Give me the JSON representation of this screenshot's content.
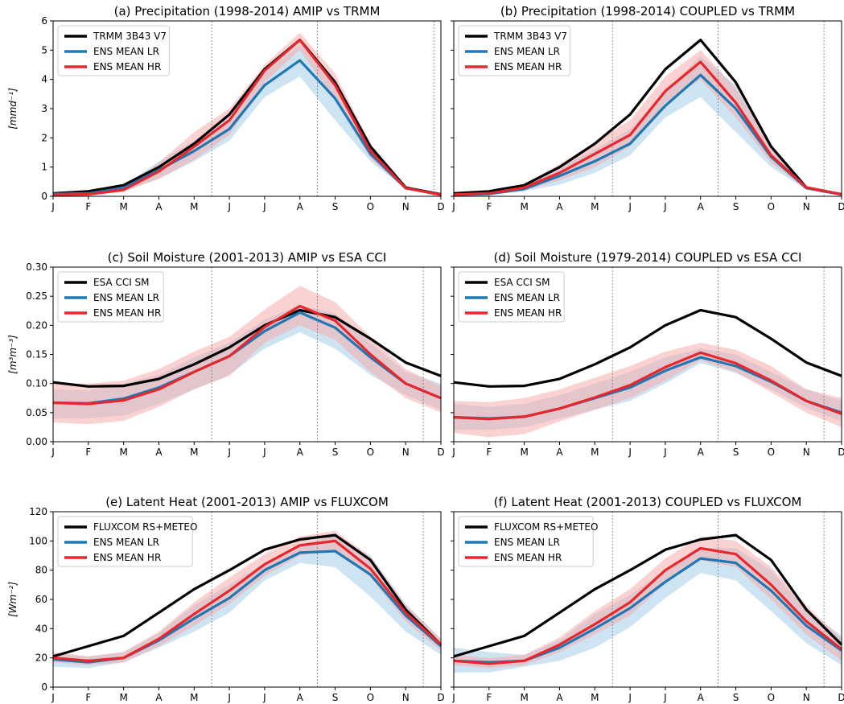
{
  "months": [
    "J",
    "F",
    "M",
    "A",
    "M",
    "J",
    "J",
    "A",
    "S",
    "O",
    "N",
    "D"
  ],
  "colors": {
    "obs": "#000000",
    "lr": "#1f77b4",
    "hr": "#e8262c",
    "lr_band": "#a6cde8",
    "hr_band": "#f7a6a6"
  },
  "chart_data": [
    {
      "type": "line",
      "title": "(a) Precipitation (1998-2014) AMIP vs TRMM",
      "ylabel": "[mmd⁻¹]",
      "ylim": [
        0,
        6
      ],
      "yticks": [
        "0",
        "1",
        "2",
        "3",
        "4",
        "5",
        "6"
      ],
      "x": [
        "J",
        "F",
        "M",
        "A",
        "M",
        "J",
        "J",
        "A",
        "S",
        "O",
        "N",
        "D"
      ],
      "vlines_at_months": [
        4.5,
        7.5,
        10.8
      ],
      "series": [
        {
          "name": "TRMM 3B43 V7",
          "role": "obs",
          "values": [
            0.1,
            0.17,
            0.38,
            1.0,
            1.8,
            2.8,
            4.35,
            5.35,
            3.9,
            1.7,
            0.3,
            0.07
          ]
        },
        {
          "name": "ENS MEAN LR",
          "role": "lr",
          "values": [
            0.08,
            0.1,
            0.28,
            0.9,
            1.55,
            2.3,
            3.8,
            4.65,
            3.35,
            1.45,
            0.28,
            0.06
          ],
          "band_low": [
            0.04,
            0.06,
            0.2,
            0.6,
            1.2,
            1.9,
            3.4,
            4.1,
            2.6,
            1.2,
            0.24,
            0.04
          ],
          "band_high": [
            0.12,
            0.14,
            0.36,
            1.2,
            1.9,
            2.7,
            4.2,
            5.2,
            4.0,
            1.7,
            0.34,
            0.08
          ]
        },
        {
          "name": "ENS MEAN HR",
          "role": "hr",
          "values": [
            0.05,
            0.07,
            0.22,
            0.85,
            1.7,
            2.6,
            4.3,
            5.35,
            3.8,
            1.55,
            0.28,
            0.05
          ],
          "band_low": [
            0.03,
            0.04,
            0.15,
            0.6,
            1.25,
            2.1,
            3.9,
            5.0,
            3.3,
            1.3,
            0.24,
            0.03
          ],
          "band_high": [
            0.08,
            0.1,
            0.3,
            1.15,
            2.2,
            3.0,
            4.5,
            5.6,
            4.2,
            1.8,
            0.33,
            0.08
          ]
        }
      ]
    },
    {
      "type": "line",
      "title": "(b) Precipitation (1998-2014) COUPLED vs TRMM",
      "ylabel": "",
      "ylim": [
        0,
        6
      ],
      "yticks": [],
      "x": [
        "J",
        "F",
        "M",
        "A",
        "M",
        "J",
        "J",
        "A",
        "S",
        "O",
        "N",
        "D"
      ],
      "vlines_at_months": [
        4.5,
        7.5,
        10.5
      ],
      "series": [
        {
          "name": "TRMM 3B43 V7",
          "role": "obs",
          "values": [
            0.1,
            0.17,
            0.38,
            1.0,
            1.8,
            2.8,
            4.35,
            5.35,
            3.9,
            1.7,
            0.3,
            0.07
          ]
        },
        {
          "name": "ENS MEAN LR",
          "role": "lr",
          "values": [
            0.05,
            0.08,
            0.25,
            0.7,
            1.2,
            1.8,
            3.1,
            4.15,
            3.0,
            1.35,
            0.28,
            0.06
          ],
          "band_low": [
            0.03,
            0.05,
            0.18,
            0.4,
            0.8,
            1.4,
            2.7,
            3.4,
            2.2,
            1.0,
            0.23,
            0.04
          ],
          "band_high": [
            0.08,
            0.12,
            0.35,
            1.0,
            1.6,
            2.3,
            3.6,
            4.8,
            3.8,
            1.6,
            0.33,
            0.08
          ]
        },
        {
          "name": "ENS MEAN HR",
          "role": "hr",
          "values": [
            0.06,
            0.1,
            0.3,
            0.8,
            1.45,
            2.1,
            3.6,
            4.6,
            3.2,
            1.4,
            0.3,
            0.07
          ],
          "band_low": [
            0.04,
            0.07,
            0.2,
            0.55,
            1.0,
            1.7,
            3.2,
            4.0,
            2.7,
            1.15,
            0.25,
            0.05
          ],
          "band_high": [
            0.09,
            0.14,
            0.4,
            1.1,
            1.85,
            2.6,
            4.1,
            5.0,
            3.7,
            1.7,
            0.36,
            0.09
          ]
        }
      ]
    },
    {
      "type": "line",
      "title": "(c) Soil Moisture (2001-2013) AMIP vs ESA CCI",
      "ylabel": "[m³m⁻³]",
      "ylim": [
        0,
        0.3
      ],
      "yticks": [
        "0.00",
        "0.05",
        "0.10",
        "0.15",
        "0.20",
        "0.25",
        "0.30"
      ],
      "x": [
        "J",
        "F",
        "M",
        "A",
        "M",
        "J",
        "J",
        "A",
        "S",
        "O",
        "N",
        "D"
      ],
      "vlines_at_months": [
        4.5,
        7.5,
        10.5
      ],
      "series": [
        {
          "name": "ESA CCI SM",
          "role": "obs",
          "values": [
            0.102,
            0.095,
            0.096,
            0.108,
            0.133,
            0.162,
            0.2,
            0.226,
            0.214,
            0.177,
            0.136,
            0.113
          ]
        },
        {
          "name": "ENS MEAN LR",
          "role": "lr",
          "values": [
            0.067,
            0.066,
            0.074,
            0.093,
            0.12,
            0.147,
            0.19,
            0.222,
            0.196,
            0.145,
            0.1,
            0.075
          ],
          "band_low": [
            0.04,
            0.04,
            0.045,
            0.065,
            0.09,
            0.115,
            0.16,
            0.188,
            0.16,
            0.115,
            0.08,
            0.055
          ],
          "band_high": [
            0.09,
            0.088,
            0.1,
            0.115,
            0.145,
            0.17,
            0.21,
            0.235,
            0.22,
            0.17,
            0.12,
            0.1
          ]
        },
        {
          "name": "ENS MEAN HR",
          "role": "hr",
          "values": [
            0.067,
            0.065,
            0.071,
            0.09,
            0.12,
            0.147,
            0.197,
            0.233,
            0.208,
            0.15,
            0.1,
            0.075
          ],
          "band_low": [
            0.033,
            0.03,
            0.036,
            0.06,
            0.09,
            0.113,
            0.17,
            0.2,
            0.175,
            0.12,
            0.075,
            0.05
          ],
          "band_high": [
            0.1,
            0.1,
            0.105,
            0.125,
            0.155,
            0.18,
            0.227,
            0.268,
            0.24,
            0.18,
            0.125,
            0.095
          ]
        }
      ]
    },
    {
      "type": "line",
      "title": "(d) Soil Moisture (1979-2014) COUPLED vs ESA CCI",
      "ylabel": "",
      "ylim": [
        0,
        0.3
      ],
      "yticks": [],
      "x": [
        "J",
        "F",
        "M",
        "A",
        "M",
        "J",
        "J",
        "A",
        "S",
        "O",
        "N",
        "D"
      ],
      "vlines_at_months": [
        4.5,
        7.5,
        10.5
      ],
      "series": [
        {
          "name": "ESA CCI SM",
          "role": "obs",
          "values": [
            0.102,
            0.095,
            0.096,
            0.108,
            0.133,
            0.162,
            0.2,
            0.226,
            0.214,
            0.177,
            0.136,
            0.113
          ]
        },
        {
          "name": "ENS MEAN LR",
          "role": "lr",
          "values": [
            0.042,
            0.04,
            0.043,
            0.057,
            0.075,
            0.093,
            0.122,
            0.145,
            0.13,
            0.103,
            0.07,
            0.05
          ],
          "band_low": [
            0.02,
            0.02,
            0.025,
            0.04,
            0.055,
            0.07,
            0.1,
            0.135,
            0.118,
            0.09,
            0.058,
            0.035
          ],
          "band_high": [
            0.065,
            0.06,
            0.065,
            0.08,
            0.1,
            0.12,
            0.145,
            0.16,
            0.15,
            0.12,
            0.09,
            0.07
          ]
        },
        {
          "name": "ENS MEAN HR",
          "role": "hr",
          "values": [
            0.042,
            0.039,
            0.043,
            0.057,
            0.076,
            0.097,
            0.128,
            0.153,
            0.135,
            0.105,
            0.07,
            0.048
          ],
          "band_low": [
            0.015,
            0.008,
            0.013,
            0.035,
            0.055,
            0.075,
            0.105,
            0.14,
            0.12,
            0.085,
            0.05,
            0.025
          ],
          "band_high": [
            0.07,
            0.068,
            0.075,
            0.09,
            0.11,
            0.13,
            0.155,
            0.17,
            0.158,
            0.13,
            0.09,
            0.075
          ]
        }
      ]
    },
    {
      "type": "line",
      "title": "(e) Latent Heat (2001-2013) AMIP vs FLUXCOM",
      "ylabel": "[Wm⁻²]",
      "ylim": [
        0,
        120
      ],
      "yticks": [
        "0",
        "20",
        "40",
        "60",
        "80",
        "100",
        "120"
      ],
      "x": [
        "J",
        "F",
        "M",
        "A",
        "M",
        "J",
        "J",
        "A",
        "S",
        "O",
        "N",
        "D"
      ],
      "vlines_at_months": [
        4.5,
        7.5,
        10.5
      ],
      "series": [
        {
          "name": "FLUXCOM RS+METEO",
          "role": "obs",
          "values": [
            21,
            28,
            35,
            51,
            67,
            80,
            94,
            101,
            104,
            87,
            53,
            29
          ]
        },
        {
          "name": "ENS MEAN LR",
          "role": "lr",
          "values": [
            19,
            17,
            20,
            32,
            47,
            61,
            80,
            92,
            93,
            77,
            49,
            28
          ],
          "band_low": [
            14,
            13,
            17,
            27,
            38,
            51,
            73,
            85,
            82,
            62,
            38,
            22
          ],
          "band_high": [
            23,
            21,
            24,
            37,
            56,
            70,
            85,
            97,
            104,
            90,
            57,
            33
          ]
        },
        {
          "name": "ENS MEAN HR",
          "role": "hr",
          "values": [
            20,
            18,
            20,
            33,
            50,
            66,
            84,
            97,
            100,
            81,
            51,
            29
          ],
          "band_low": [
            17,
            15,
            17,
            28,
            42,
            57,
            76,
            90,
            94,
            75,
            45,
            25
          ],
          "band_high": [
            24,
            21,
            24,
            38,
            58,
            75,
            91,
            103,
            107,
            89,
            56,
            33
          ]
        }
      ]
    },
    {
      "type": "line",
      "title": "(f) Latent Heat (2001-2013) COUPLED vs FLUXCOM",
      "ylabel": "",
      "ylim": [
        0,
        120
      ],
      "yticks": [],
      "x": [
        "J",
        "F",
        "M",
        "A",
        "M",
        "J",
        "J",
        "A",
        "S",
        "O",
        "N",
        "D"
      ],
      "vlines_at_months": [
        4.5,
        7.5,
        10.5
      ],
      "series": [
        {
          "name": "FLUXCOM RS+METEO",
          "role": "obs",
          "values": [
            21,
            28,
            35,
            51,
            67,
            80,
            94,
            101,
            104,
            87,
            53,
            29
          ]
        },
        {
          "name": "ENS MEAN LR",
          "role": "lr",
          "values": [
            18,
            17,
            18,
            27,
            40,
            54,
            72,
            88,
            85,
            66,
            42,
            25
          ],
          "band_low": [
            10,
            10,
            14,
            18,
            27,
            41,
            61,
            78,
            73,
            52,
            30,
            15
          ],
          "band_high": [
            27,
            24,
            22,
            32,
            50,
            63,
            80,
            95,
            95,
            80,
            53,
            35
          ]
        },
        {
          "name": "ENS MEAN HR",
          "role": "hr",
          "values": [
            18,
            16,
            18,
            29,
            43,
            58,
            80,
            95,
            91,
            70,
            45,
            26
          ],
          "band_low": [
            15,
            13,
            15,
            24,
            36,
            49,
            71,
            87,
            82,
            60,
            36,
            18
          ],
          "band_high": [
            22,
            20,
            22,
            34,
            52,
            67,
            88,
            103,
            100,
            82,
            56,
            33
          ]
        }
      ]
    }
  ]
}
